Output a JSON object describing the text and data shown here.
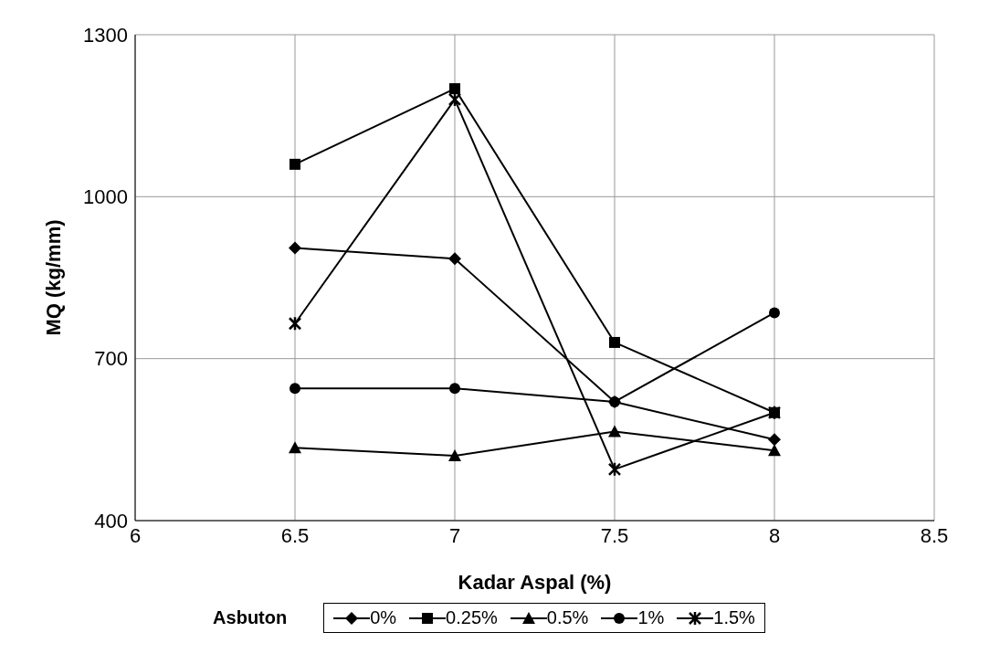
{
  "chart_data": {
    "type": "line",
    "xlabel": "Kadar Aspal (%)",
    "ylabel": "MQ (kg/mm)",
    "legend_title": "Asbuton",
    "x": [
      6.5,
      7,
      7.5,
      8
    ],
    "xlim": [
      6,
      8.5
    ],
    "xticks": [
      6,
      6.5,
      7,
      7.5,
      8,
      8.5
    ],
    "ylim": [
      400,
      1300
    ],
    "yticks": [
      400,
      700,
      1000,
      1300
    ],
    "grid": true,
    "legend": "bottom",
    "line_style": "solid",
    "series": [
      {
        "name": "0%",
        "color": "#000000",
        "marker": "diamond",
        "values": [
          905,
          885,
          620,
          550
        ]
      },
      {
        "name": "0.25%",
        "color": "#000000",
        "marker": "square",
        "values": [
          1060,
          1200,
          730,
          600
        ]
      },
      {
        "name": "0.5%",
        "color": "#000000",
        "marker": "triangle",
        "values": [
          535,
          520,
          565,
          530
        ]
      },
      {
        "name": "1%",
        "color": "#000000",
        "marker": "circle",
        "values": [
          645,
          645,
          620,
          785
        ]
      },
      {
        "name": "1.5%",
        "color": "#000000",
        "marker": "cross",
        "values": [
          765,
          1180,
          495,
          600
        ]
      }
    ]
  }
}
